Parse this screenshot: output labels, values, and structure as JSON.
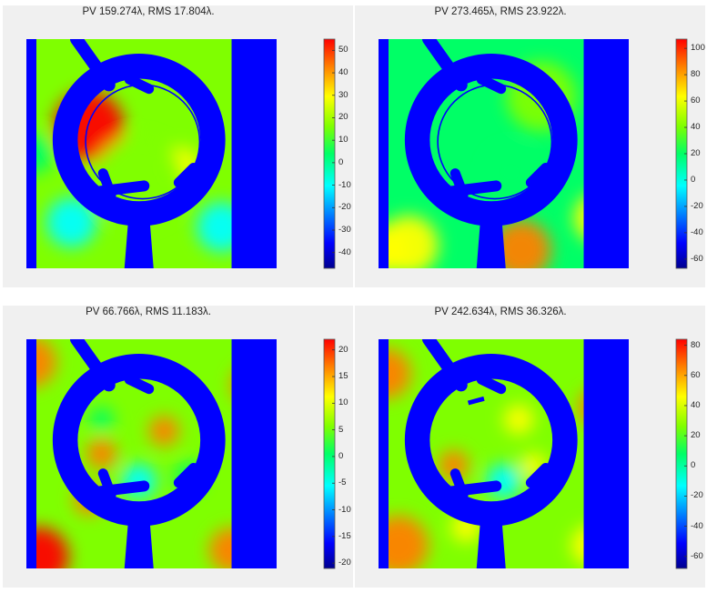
{
  "chart_data": [
    {
      "type": "heatmap",
      "title": "PV 159.274λ, RMS 17.804λ.",
      "colorbar": {
        "ticks": [
          50,
          40,
          30,
          20,
          10,
          0,
          -10,
          -20,
          -30,
          -40
        ],
        "range": [
          -47,
          55
        ],
        "colormap": "jet"
      },
      "field": {
        "base": 0.52,
        "blobs": [
          [
            0.25,
            0.38,
            0.14,
            0.38
          ],
          [
            0.62,
            0.55,
            0.07,
            0.22
          ],
          [
            0.18,
            0.8,
            0.1,
            -0.2
          ],
          [
            0.78,
            0.82,
            0.1,
            -0.25
          ],
          [
            0.03,
            0.5,
            0.08,
            -0.15
          ],
          [
            0.45,
            0.62,
            0.18,
            0.08
          ]
        ]
      },
      "features": {
        "inner_arc": true,
        "notch": false
      }
    },
    {
      "type": "heatmap",
      "title": "PV 273.465λ, RMS 23.922λ.",
      "colorbar": {
        "ticks": [
          100,
          80,
          60,
          40,
          20,
          0,
          -20,
          -40,
          -60
        ],
        "range": [
          -67,
          107
        ],
        "colormap": "jet"
      },
      "field": {
        "base": 0.5,
        "blobs": [
          [
            0.53,
            0.58,
            0.1,
            -0.12
          ],
          [
            0.57,
            0.92,
            0.12,
            0.35
          ],
          [
            0.12,
            0.9,
            0.12,
            0.18
          ],
          [
            0.02,
            0.92,
            0.1,
            0.2
          ],
          [
            0.88,
            0.78,
            0.1,
            0.18
          ],
          [
            0.65,
            0.25,
            0.14,
            0.06
          ]
        ]
      },
      "features": {
        "inner_arc": true,
        "notch": false
      }
    },
    {
      "type": "heatmap",
      "title": "PV 66.766λ, RMS 11.183λ.",
      "colorbar": {
        "ticks": [
          20,
          15,
          10,
          5,
          0,
          -5,
          -10,
          -15,
          -20
        ],
        "range": [
          -21,
          22
        ],
        "colormap": "jet"
      },
      "field": {
        "base": 0.58,
        "blobs": [
          [
            0.02,
            0.1,
            0.1,
            0.3
          ],
          [
            0.05,
            0.95,
            0.12,
            0.35
          ],
          [
            0.3,
            0.5,
            0.06,
            0.28
          ],
          [
            0.55,
            0.4,
            0.06,
            0.3
          ],
          [
            0.45,
            0.62,
            0.07,
            -0.35
          ],
          [
            0.3,
            0.35,
            0.05,
            -0.15
          ],
          [
            0.65,
            0.6,
            0.06,
            -0.1
          ],
          [
            0.9,
            0.2,
            0.08,
            0.25
          ],
          [
            0.82,
            0.92,
            0.09,
            0.25
          ],
          [
            0.25,
            0.7,
            0.06,
            0.3
          ]
        ]
      },
      "features": {
        "inner_arc": false,
        "notch": false
      }
    },
    {
      "type": "heatmap",
      "title": "PV 242.634λ, RMS 36.326λ.",
      "colorbar": {
        "ticks": [
          80,
          60,
          40,
          20,
          0,
          -20,
          -40,
          -60
        ],
        "range": [
          -68,
          84
        ],
        "colormap": "jet"
      },
      "field": {
        "base": 0.53,
        "blobs": [
          [
            0.03,
            0.15,
            0.1,
            0.3
          ],
          [
            0.08,
            0.9,
            0.12,
            0.35
          ],
          [
            0.3,
            0.55,
            0.06,
            0.32
          ],
          [
            0.56,
            0.35,
            0.06,
            0.22
          ],
          [
            0.5,
            0.62,
            0.07,
            -0.35
          ],
          [
            0.62,
            0.55,
            0.05,
            0.2
          ],
          [
            0.88,
            0.3,
            0.08,
            0.25
          ],
          [
            0.85,
            0.9,
            0.08,
            0.22
          ],
          [
            0.35,
            0.82,
            0.06,
            0.15
          ]
        ]
      },
      "features": {
        "inner_arc": false,
        "notch": true
      }
    }
  ]
}
